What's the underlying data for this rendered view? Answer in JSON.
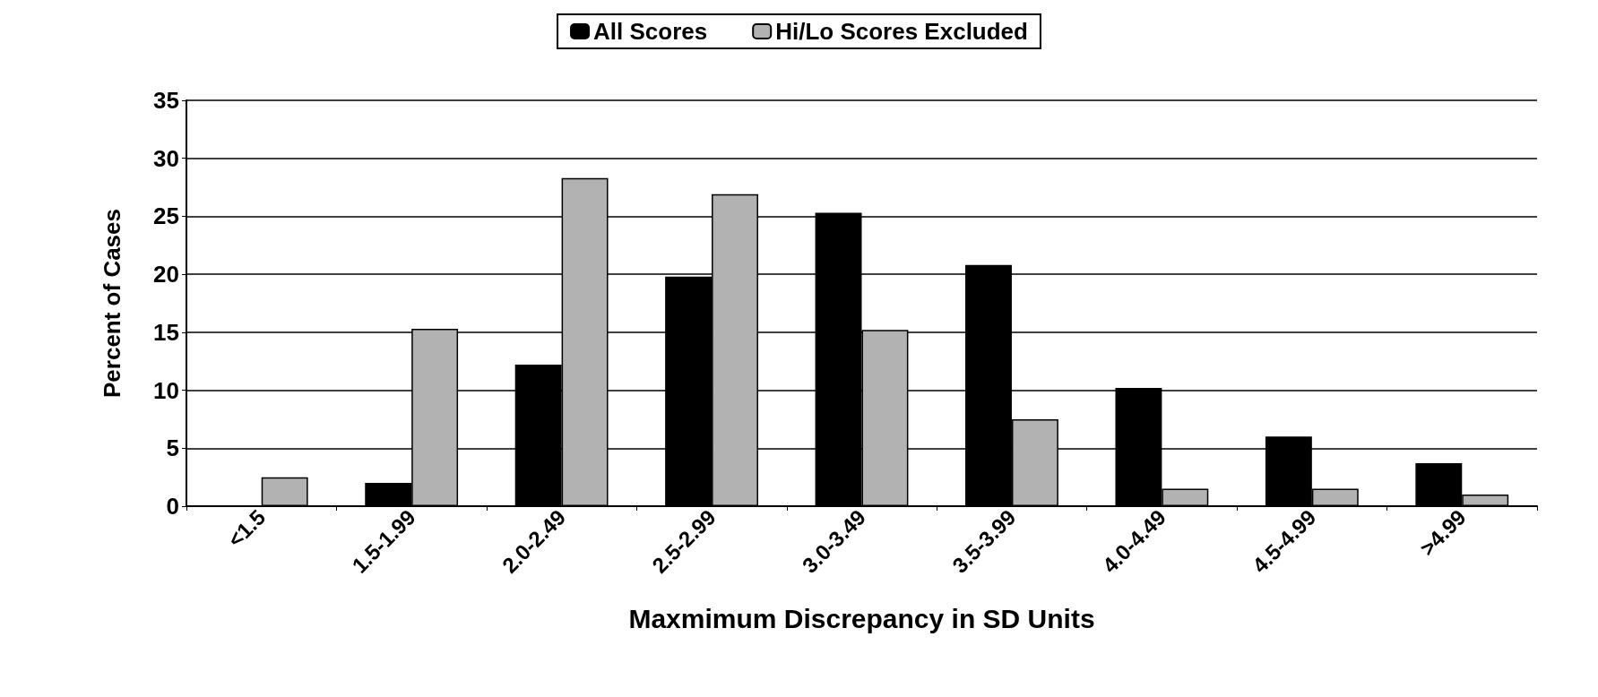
{
  "chart_data": {
    "type": "bar",
    "xlabel": "Maxmimum Discrepancy in SD Units",
    "ylabel": "Percent of Cases",
    "categories": [
      "<1.5",
      "1.5-1.99",
      "2.0-2.49",
      "2.5-2.99",
      "3.0-3.49",
      "3.5-3.99",
      "4.0-4.49",
      "4.5-4.99",
      ">4.99"
    ],
    "series": [
      {
        "name": "All Scores",
        "color": "#000000",
        "values": [
          0,
          2.0,
          12.2,
          19.8,
          25.3,
          20.8,
          10.2,
          6.0,
          3.7
        ]
      },
      {
        "name": "Hi/Lo Scores Excluded",
        "color": "#b2b2b2",
        "values": [
          2.5,
          15.3,
          28.3,
          26.9,
          15.2,
          7.5,
          1.5,
          1.5,
          1.0
        ]
      }
    ],
    "ylim": [
      0,
      35
    ],
    "yticks": [
      0,
      5,
      10,
      15,
      20,
      25,
      30,
      35
    ],
    "grid": "y",
    "legend": "top"
  }
}
